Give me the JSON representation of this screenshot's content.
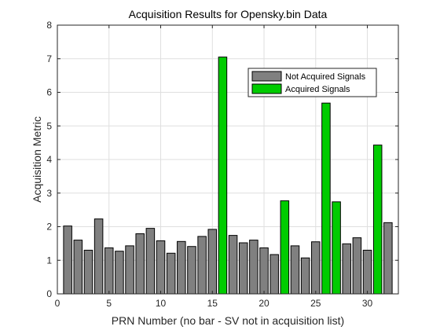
{
  "chart_data": {
    "type": "bar",
    "title": "Acquisition Results for Opensky.bin Data",
    "xlabel": "PRN Number (no bar - SV not in acquisition list)",
    "ylabel": "Acquisition Metric",
    "xlim": [
      0,
      33
    ],
    "ylim": [
      0,
      8
    ],
    "xticks": [
      0,
      5,
      10,
      15,
      20,
      25,
      30
    ],
    "yticks": [
      0,
      1,
      2,
      3,
      4,
      5,
      6,
      7,
      8
    ],
    "grid": true,
    "legend_position": "top-right",
    "series": [
      {
        "name": "Not Acquired Signals",
        "color": "#808080",
        "x": [
          1,
          2,
          3,
          4,
          5,
          6,
          7,
          8,
          9,
          10,
          11,
          12,
          13,
          14,
          15,
          17,
          18,
          19,
          20,
          21,
          23,
          24,
          25,
          28,
          29,
          30,
          32
        ],
        "values": [
          2.02,
          1.6,
          1.3,
          2.23,
          1.37,
          1.27,
          1.43,
          1.79,
          1.95,
          1.58,
          1.21,
          1.56,
          1.41,
          1.71,
          1.92,
          1.74,
          1.52,
          1.6,
          1.37,
          1.17,
          1.43,
          1.07,
          1.55,
          1.49,
          1.67,
          1.3,
          2.12
        ]
      },
      {
        "name": "Acquired Signals",
        "color": "#00cc00",
        "x": [
          16,
          22,
          26,
          27,
          31
        ],
        "values": [
          7.05,
          2.77,
          5.68,
          2.74,
          4.43
        ]
      }
    ]
  }
}
